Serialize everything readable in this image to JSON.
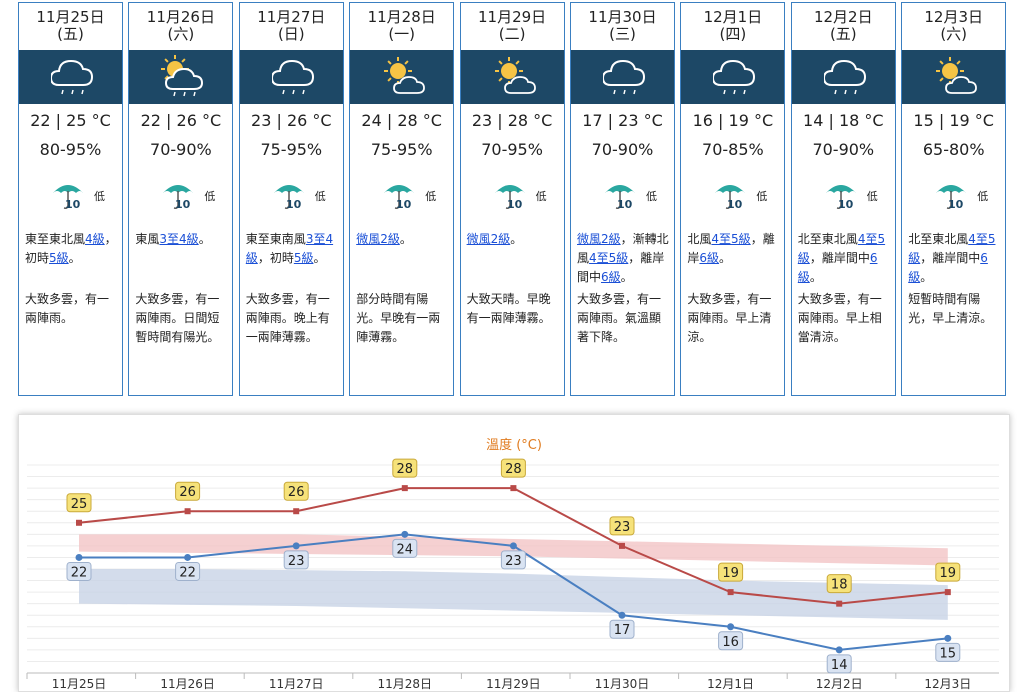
{
  "days": [
    {
      "date": "11月25日",
      "dow": "(五)",
      "icon": "cloud-rain-icon",
      "temp": "22 | 25 °C",
      "humidity": "80-95%",
      "psr": "低",
      "wind": [
        {
          "t": "東至東北風"
        },
        {
          "t": "4級",
          "link": true
        },
        {
          "t": "，初時"
        },
        {
          "t": "5級",
          "link": true
        },
        {
          "t": "。"
        }
      ],
      "desc": "大致多雲，有一兩陣雨。"
    },
    {
      "date": "11月26日",
      "dow": "(六)",
      "icon": "sun-cloud-rain-icon",
      "temp": "22 | 26 °C",
      "humidity": "70-90%",
      "psr": "低",
      "wind": [
        {
          "t": "東風"
        },
        {
          "t": "3至4級",
          "link": true
        },
        {
          "t": "。"
        }
      ],
      "desc": "大致多雲，有一兩陣雨。日間短暫時間有陽光。"
    },
    {
      "date": "11月27日",
      "dow": "(日)",
      "icon": "cloud-rain-icon",
      "temp": "23 | 26 °C",
      "humidity": "75-95%",
      "psr": "低",
      "wind": [
        {
          "t": "東至東南風"
        },
        {
          "t": "3至4級",
          "link": true
        },
        {
          "t": "，初時"
        },
        {
          "t": "5級",
          "link": true
        },
        {
          "t": "。"
        }
      ],
      "desc": "大致多雲，有一兩陣雨。晚上有一兩陣薄霧。"
    },
    {
      "date": "11月28日",
      "dow": "(一)",
      "icon": "sun-cloud-icon",
      "temp": "24 | 28 °C",
      "humidity": "75-95%",
      "psr": "低",
      "wind": [
        {
          "t": "微風2級",
          "link": true
        },
        {
          "t": "。"
        }
      ],
      "desc": "部分時間有陽光。早晚有一兩陣薄霧。"
    },
    {
      "date": "11月29日",
      "dow": "(二)",
      "icon": "sun-cloud-icon",
      "temp": "23 | 28 °C",
      "humidity": "70-95%",
      "psr": "低",
      "wind": [
        {
          "t": "微風2級",
          "link": true
        },
        {
          "t": "。"
        }
      ],
      "desc": "大致天晴。早晚有一兩陣薄霧。"
    },
    {
      "date": "11月30日",
      "dow": "(三)",
      "icon": "cloud-rain-icon",
      "temp": "17 | 23 °C",
      "humidity": "70-90%",
      "psr": "低",
      "wind": [
        {
          "t": "微風2級",
          "link": true
        },
        {
          "t": "，漸轉北風"
        },
        {
          "t": "4至5級",
          "link": true
        },
        {
          "t": "，離岸間中"
        },
        {
          "t": "6級",
          "link": true
        },
        {
          "t": "。"
        }
      ],
      "desc": "大致多雲，有一兩陣雨。氣溫顯著下降。"
    },
    {
      "date": "12月1日",
      "dow": "(四)",
      "icon": "cloud-rain-icon",
      "temp": "16 | 19 °C",
      "humidity": "70-85%",
      "psr": "低",
      "wind": [
        {
          "t": "北風"
        },
        {
          "t": "4至5級",
          "link": true
        },
        {
          "t": "，離岸"
        },
        {
          "t": "6級",
          "link": true
        },
        {
          "t": "。"
        }
      ],
      "desc": "大致多雲，有一兩陣雨。早上清涼。"
    },
    {
      "date": "12月2日",
      "dow": "(五)",
      "icon": "cloud-rain-icon",
      "temp": "14 | 18 °C",
      "humidity": "70-90%",
      "psr": "低",
      "wind": [
        {
          "t": "北至東北風"
        },
        {
          "t": "4至5級",
          "link": true
        },
        {
          "t": "，離岸間中"
        },
        {
          "t": "6級",
          "link": true
        },
        {
          "t": "。"
        }
      ],
      "desc": "大致多雲，有一兩陣雨。早上相當清涼。"
    },
    {
      "date": "12月3日",
      "dow": "(六)",
      "icon": "sun-cloud-icon",
      "temp": "15 | 19 °C",
      "humidity": "65-80%",
      "psr": "低",
      "wind": [
        {
          "t": "北至東北風"
        },
        {
          "t": "4至5級",
          "link": true
        },
        {
          "t": "，離岸間中"
        },
        {
          "t": "6級",
          "link": true
        },
        {
          "t": "。"
        }
      ],
      "desc": "短暫時間有陽光，早上清涼。"
    }
  ],
  "psr_icon_number": "10",
  "colors": {
    "card_border": "#3a7fc1",
    "icon_bar": "#1d4866",
    "max_line": "#b94a48",
    "min_line": "#4a7fc1",
    "max_band": "#f2c4c6",
    "min_band": "#c8d3e6",
    "label_max_bg": "#f6e27a",
    "label_min_bg": "#d9e3f2"
  },
  "chart_data": {
    "type": "line",
    "title": "溫度 (°C)",
    "categories": [
      "11月25日",
      "11月26日",
      "11月27日",
      "11月28日",
      "11月29日",
      "11月30日",
      "12月1日",
      "12月2日",
      "12月3日"
    ],
    "series": [
      {
        "name": "max",
        "values": [
          25,
          26,
          26,
          28,
          28,
          23,
          19,
          18,
          19
        ]
      },
      {
        "name": "min",
        "values": [
          22,
          22,
          23,
          24,
          23,
          17,
          16,
          14,
          15
        ]
      }
    ],
    "bands": [
      {
        "name": "max-normal",
        "from": [
          24,
          24,
          24,
          23.8,
          23.6,
          23.4,
          23.2,
          23,
          22.8
        ],
        "to": [
          22.5,
          22.4,
          22.3,
          22.2,
          22.1,
          21.9,
          21.7,
          21.5,
          21.3
        ]
      },
      {
        "name": "min-normal",
        "from": [
          21,
          21,
          20.9,
          20.8,
          20.6,
          20.3,
          20,
          19.8,
          19.6
        ],
        "to": [
          18,
          17.9,
          17.8,
          17.6,
          17.4,
          17.2,
          17,
          16.8,
          16.6
        ]
      }
    ],
    "ylim": [
      12,
      30
    ],
    "grid": true
  }
}
